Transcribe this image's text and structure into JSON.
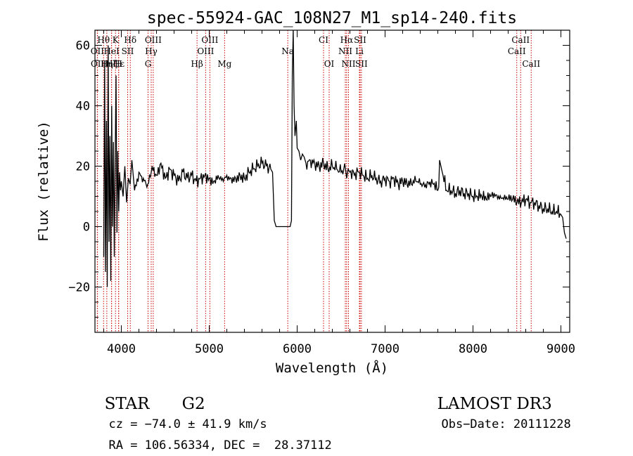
{
  "chart_data": {
    "type": "line",
    "title": "spec-55924-GAC_108N27_M1_sp14-240.fits",
    "xlabel": "Wavelength (Å)",
    "ylabel": "Flux (relative)",
    "xlim": [
      3700,
      9100
    ],
    "ylim": [
      -35,
      65
    ],
    "xticks": [
      4000,
      5000,
      6000,
      7000,
      8000,
      9000
    ],
    "yticks": [
      -20,
      0,
      20,
      40,
      60
    ],
    "xtick_labels": [
      "4000",
      "5000",
      "6000",
      "7000",
      "8000",
      "9000"
    ],
    "ytick_labels": [
      "−20",
      "0",
      "20",
      "40",
      "60"
    ],
    "series": [
      {
        "name": "flux",
        "x": [
          3800,
          3810,
          3820,
          3830,
          3840,
          3850,
          3860,
          3870,
          3880,
          3890,
          3900,
          3910,
          3920,
          3930,
          3940,
          3950,
          3960,
          3970,
          3980,
          3990,
          4000,
          4020,
          4040,
          4060,
          4080,
          4100,
          4120,
          4150,
          4200,
          4250,
          4300,
          4350,
          4400,
          4450,
          4500,
          4550,
          4600,
          4650,
          4700,
          4750,
          4800,
          4850,
          4900,
          4950,
          5000,
          5050,
          5100,
          5150,
          5200,
          5250,
          5300,
          5350,
          5400,
          5450,
          5500,
          5550,
          5600,
          5650,
          5700,
          5720,
          5740,
          5760,
          5800,
          5850,
          5900,
          5920,
          5935,
          5945,
          5955,
          5965,
          5975,
          5990,
          6000,
          6020,
          6040,
          6060,
          6080,
          6100,
          6150,
          6200,
          6250,
          6300,
          6350,
          6400,
          6450,
          6500,
          6550,
          6563,
          6580,
          6600,
          6650,
          6700,
          6750,
          6800,
          6850,
          6900,
          6950,
          7000,
          7050,
          7100,
          7150,
          7200,
          7250,
          7300,
          7350,
          7400,
          7450,
          7500,
          7550,
          7600,
          7610,
          7620,
          7650,
          7700,
          7750,
          7800,
          7850,
          7900,
          7950,
          8000,
          8050,
          8100,
          8150,
          8200,
          8250,
          8300,
          8350,
          8400,
          8450,
          8500,
          8550,
          8600,
          8650,
          8700,
          8750,
          8800,
          8850,
          8900,
          8950,
          9000,
          9020,
          9040,
          9060
        ],
        "values": [
          -10,
          55,
          -15,
          35,
          -20,
          60,
          -5,
          30,
          -18,
          40,
          0,
          28,
          -10,
          22,
          50,
          -2,
          25,
          5,
          18,
          12,
          15,
          10,
          20,
          8,
          16,
          14,
          22,
          12,
          18,
          16,
          14,
          20,
          17,
          21,
          16,
          19,
          17,
          15,
          18,
          16,
          17,
          15,
          16,
          17,
          16,
          15,
          17,
          16,
          17,
          16,
          16,
          17,
          16,
          18,
          19,
          20,
          21,
          20,
          19,
          18,
          2,
          0,
          0,
          0,
          0,
          0,
          2,
          50,
          65,
          40,
          30,
          35,
          26,
          25,
          22,
          24,
          23,
          21,
          22,
          21,
          20,
          21,
          19,
          20,
          19,
          18,
          19,
          16,
          19,
          18,
          17,
          18,
          17,
          16,
          17,
          16,
          15,
          16,
          15,
          16,
          14,
          15,
          14,
          14,
          15,
          14,
          13,
          14,
          14,
          12,
          13,
          22,
          18,
          12,
          12,
          11,
          12,
          11,
          11,
          10,
          10,
          10,
          9,
          10,
          10,
          9,
          9,
          9,
          9,
          8,
          8,
          9,
          8,
          8,
          7,
          6,
          6,
          5,
          5,
          4,
          3,
          -2,
          -4
        ]
      }
    ],
    "lines": [
      {
        "label": "Hθ",
        "x": 3798
      },
      {
        "label": "K",
        "x": 3934
      },
      {
        "label": "Hδ",
        "x": 4102
      },
      {
        "label": "OIII",
        "x": 4363
      },
      {
        "label": "OIII",
        "x": 5007
      },
      {
        "label": "CI",
        "x": 6300
      },
      {
        "label": "Hα",
        "x": 6563
      },
      {
        "label": "SII",
        "x": 6716
      },
      {
        "label": "CaII",
        "x": 8542
      },
      {
        "label": "OII",
        "x": 3727
      },
      {
        "label": "HeI",
        "x": 3889
      },
      {
        "label": "SII",
        "x": 4072
      },
      {
        "label": "Hγ",
        "x": 4340
      },
      {
        "label": "OIII",
        "x": 4959
      },
      {
        "label": "Na",
        "x": 5893
      },
      {
        "label": "NII",
        "x": 6548
      },
      {
        "label": "Li",
        "x": 6708
      },
      {
        "label": "CaII",
        "x": 8498
      },
      {
        "label": "OII",
        "x": 3729
      },
      {
        "label": "Hη",
        "x": 3835
      },
      {
        "label": "H",
        "x": 3969
      },
      {
        "label": "G",
        "x": 4304
      },
      {
        "label": "Hβ",
        "x": 4861
      },
      {
        "label": "Mg",
        "x": 5175
      },
      {
        "label": "OI",
        "x": 6364
      },
      {
        "label": "NII",
        "x": 6584
      },
      {
        "label": "SII",
        "x": 6731
      },
      {
        "label": "CaII",
        "x": 8662
      },
      {
        "label": "Hζ",
        "x": 3889
      },
      {
        "label": "Hε",
        "x": 3970
      }
    ],
    "line_rows": [
      9,
      9,
      12
    ]
  },
  "info": {
    "class_label": "STAR",
    "subclass": "G2",
    "survey": "LAMOST DR3",
    "cz": "cz = −74.0 ± 41.9 km/s",
    "obs_date": "Obs−Date: 20111228",
    "coords": "RA = 106.56334, DEC =  28.37112"
  },
  "colors": {
    "line_marker": "#cc0000",
    "spectrum": "#000000"
  }
}
